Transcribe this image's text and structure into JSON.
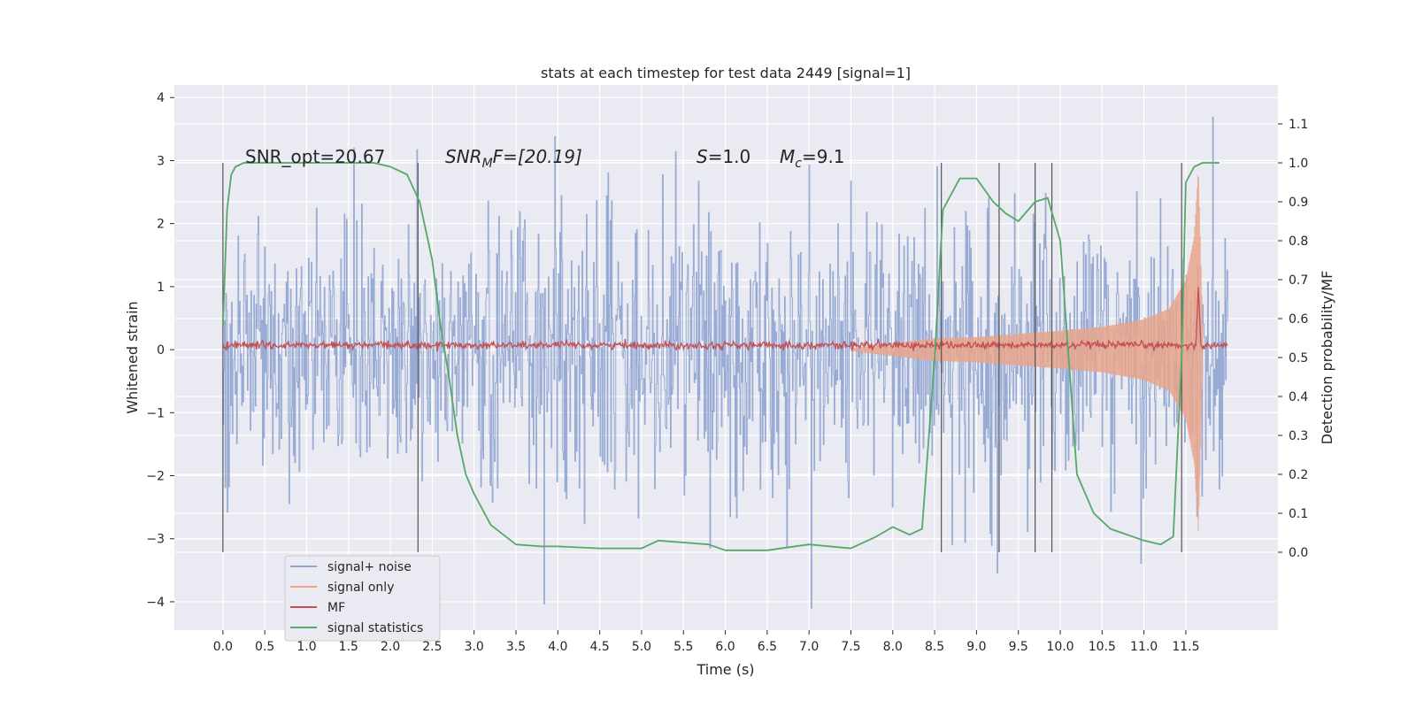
{
  "chart_data": {
    "type": "line",
    "title": "stats at each timestep for test data 2449 [signal=1]",
    "xlabel": "Time (s)",
    "ylabel": "Whitened strain",
    "ylabel_right": "Detection probability/MF",
    "xlim": [
      -0.58,
      12.6
    ],
    "ylim": [
      -4.45,
      4.2
    ],
    "ylim_right": [
      -0.2,
      1.2
    ],
    "x_ticks": [
      "0.0",
      "0.5",
      "1.0",
      "1.5",
      "2.0",
      "2.5",
      "3.0",
      "3.5",
      "4.0",
      "4.5",
      "5.0",
      "5.5",
      "6.0",
      "6.5",
      "7.0",
      "7.5",
      "8.0",
      "8.5",
      "9.0",
      "9.5",
      "10.0",
      "10.5",
      "11.0",
      "11.5"
    ],
    "y_ticks_left": [
      "−4",
      "−3",
      "−2",
      "−1",
      "0",
      "1",
      "2",
      "3",
      "4"
    ],
    "y_ticks_right": [
      "0.0",
      "0.1",
      "0.2",
      "0.3",
      "0.4",
      "0.5",
      "0.6",
      "0.7",
      "0.8",
      "0.9",
      "1.0",
      "1.1"
    ],
    "grid": true,
    "legend_position": "lower-left",
    "annotations": {
      "snr_opt": "SNR_opt=20.67",
      "snr_mf": "SNR",
      "snr_mf_sub": "M",
      "snr_mf_rest": "F=[20.19]",
      "s_label": "S",
      "s_value": "=1.0",
      "mc_label": "M",
      "mc_sub": "c",
      "mc_value": "=9.1"
    },
    "series": [
      {
        "name": "signal+ noise",
        "color": "#8fa4d0",
        "axis": "left",
        "x_range": [
          0.0,
          12.0
        ],
        "description_values": {
          "typical_amplitude": 2.0,
          "min": -4.1,
          "max": 3.8
        }
      },
      {
        "name": "signal only",
        "color": "#e8a58c",
        "axis": "left",
        "envelope": {
          "x": [
            7.5,
            8.0,
            8.5,
            9.0,
            9.5,
            10.0,
            10.5,
            11.0,
            11.3,
            11.5,
            11.6,
            11.65,
            11.7
          ],
          "amp": [
            0.02,
            0.1,
            0.18,
            0.2,
            0.25,
            0.3,
            0.36,
            0.48,
            0.65,
            1.1,
            1.8,
            2.9,
            0.4
          ]
        }
      },
      {
        "name": "MF",
        "color": "#c44e52",
        "axis": "left",
        "x_range": [
          0.0,
          12.0
        ],
        "baseline": 0.07,
        "peak": {
          "x": 11.65,
          "y": 1.0
        }
      },
      {
        "name": "signal statistics",
        "color": "#55a868",
        "axis": "right",
        "x": [
          0.0,
          0.05,
          0.1,
          0.15,
          0.25,
          0.5,
          1.0,
          1.5,
          1.8,
          2.0,
          2.2,
          2.35,
          2.5,
          2.6,
          2.7,
          2.8,
          2.9,
          3.0,
          3.2,
          3.5,
          3.8,
          4.0,
          4.5,
          5.0,
          5.2,
          5.5,
          5.8,
          6.0,
          6.5,
          7.0,
          7.5,
          7.8,
          8.0,
          8.2,
          8.35,
          8.5,
          8.6,
          8.8,
          9.0,
          9.2,
          9.35,
          9.5,
          9.7,
          9.85,
          10.0,
          10.1,
          10.2,
          10.4,
          10.6,
          11.0,
          11.2,
          11.35,
          11.45,
          11.5,
          11.6,
          11.7,
          11.9
        ],
        "y": [
          0.58,
          0.88,
          0.97,
          0.99,
          1.0,
          1.0,
          1.0,
          1.0,
          1.0,
          0.99,
          0.97,
          0.9,
          0.75,
          0.58,
          0.45,
          0.3,
          0.2,
          0.15,
          0.07,
          0.02,
          0.015,
          0.015,
          0.01,
          0.01,
          0.03,
          0.025,
          0.02,
          0.005,
          0.005,
          0.02,
          0.01,
          0.04,
          0.065,
          0.045,
          0.06,
          0.5,
          0.88,
          0.96,
          0.96,
          0.9,
          0.87,
          0.85,
          0.9,
          0.91,
          0.8,
          0.5,
          0.2,
          0.1,
          0.06,
          0.03,
          0.02,
          0.04,
          0.5,
          0.95,
          0.99,
          1.0,
          1.0
        ]
      }
    ],
    "vertical_lines": [
      0.0,
      2.33,
      8.58,
      9.27,
      9.7,
      9.9,
      11.45
    ]
  }
}
